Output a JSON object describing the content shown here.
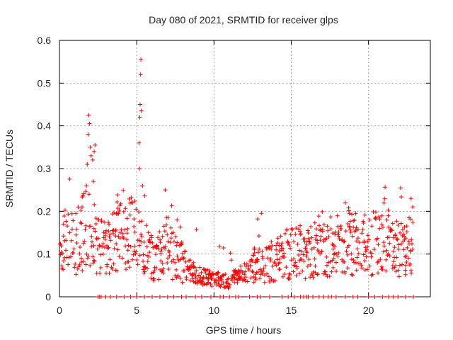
{
  "chart_data": {
    "type": "scatter",
    "title": "Day 080 of 2021, SRMTID for receiver glps",
    "xlabel": "GPS time / hours",
    "ylabel": "SRMTID / TECUs",
    "xlim": [
      0,
      24
    ],
    "ylim": [
      0,
      0.6
    ],
    "xticks": [
      0,
      5,
      10,
      15,
      20
    ],
    "yticks": [
      0,
      0.1,
      0.2,
      0.3,
      0.4,
      0.5,
      0.6
    ],
    "grid": true,
    "marker": "plus",
    "color": "#ff0000",
    "profile": [
      [
        0.0,
        0.12
      ],
      [
        0.5,
        0.13
      ],
      [
        1.0,
        0.12
      ],
      [
        1.5,
        0.15
      ],
      [
        2.0,
        0.16
      ],
      [
        2.5,
        0.13
      ],
      [
        3.0,
        0.12
      ],
      [
        3.5,
        0.14
      ],
      [
        4.0,
        0.16
      ],
      [
        4.5,
        0.15
      ],
      [
        5.0,
        0.14
      ],
      [
        5.5,
        0.11
      ],
      [
        6.0,
        0.09
      ],
      [
        6.5,
        0.1
      ],
      [
        7.0,
        0.12
      ],
      [
        7.5,
        0.09
      ],
      [
        8.0,
        0.08
      ],
      [
        8.5,
        0.06
      ],
      [
        9.0,
        0.05
      ],
      [
        9.5,
        0.045
      ],
      [
        10.0,
        0.04
      ],
      [
        10.5,
        0.04
      ],
      [
        11.0,
        0.035
      ],
      [
        11.5,
        0.05
      ],
      [
        12.0,
        0.06
      ],
      [
        12.5,
        0.07
      ],
      [
        13.0,
        0.07
      ],
      [
        13.5,
        0.08
      ],
      [
        14.0,
        0.09
      ],
      [
        14.5,
        0.1
      ],
      [
        15.0,
        0.1
      ],
      [
        15.5,
        0.11
      ],
      [
        16.0,
        0.1
      ],
      [
        16.5,
        0.11
      ],
      [
        17.0,
        0.12
      ],
      [
        17.5,
        0.11
      ],
      [
        18.0,
        0.12
      ],
      [
        18.5,
        0.14
      ],
      [
        19.0,
        0.12
      ],
      [
        19.5,
        0.13
      ],
      [
        20.0,
        0.12
      ],
      [
        20.5,
        0.13
      ],
      [
        21.0,
        0.15
      ],
      [
        21.5,
        0.13
      ],
      [
        22.0,
        0.11
      ],
      [
        22.5,
        0.12
      ],
      [
        22.9,
        0.14
      ]
    ],
    "spikes": [
      [
        1.75,
        0.26
      ],
      [
        1.8,
        0.31
      ],
      [
        1.85,
        0.38
      ],
      [
        1.9,
        0.425
      ],
      [
        1.95,
        0.405
      ],
      [
        2.0,
        0.35
      ],
      [
        2.05,
        0.33
      ],
      [
        2.15,
        0.32
      ],
      [
        2.25,
        0.34
      ],
      [
        2.3,
        0.355
      ],
      [
        2.2,
        0.27
      ],
      [
        5.15,
        0.36
      ],
      [
        5.18,
        0.3
      ],
      [
        5.2,
        0.42
      ],
      [
        5.22,
        0.45
      ],
      [
        5.25,
        0.52
      ],
      [
        5.27,
        0.555
      ],
      [
        5.3,
        0.435
      ],
      [
        6.85,
        0.25
      ],
      [
        18.5,
        0.22
      ],
      [
        21.0,
        0.22
      ],
      [
        22.75,
        0.23
      ]
    ],
    "zero_points": [
      2.5,
      2.6,
      2.7,
      3.0,
      3.3,
      3.7,
      4.2,
      4.6,
      5.0,
      5.5,
      6.0,
      6.5,
      7.0,
      7.4,
      7.9,
      8.2,
      8.8,
      9.2,
      9.8,
      10.4,
      10.6,
      11.0,
      11.4,
      11.6,
      12.3,
      12.8,
      13.0,
      13.6,
      14.4,
      14.8,
      15.2,
      15.6,
      15.8,
      16.0,
      16.1,
      16.4,
      16.8,
      17.1,
      17.4,
      17.6,
      17.9,
      18.5,
      19.0,
      19.3,
      20.0,
      20.4,
      20.9,
      21.3,
      21.6,
      21.9,
      22.4,
      22.9
    ]
  }
}
